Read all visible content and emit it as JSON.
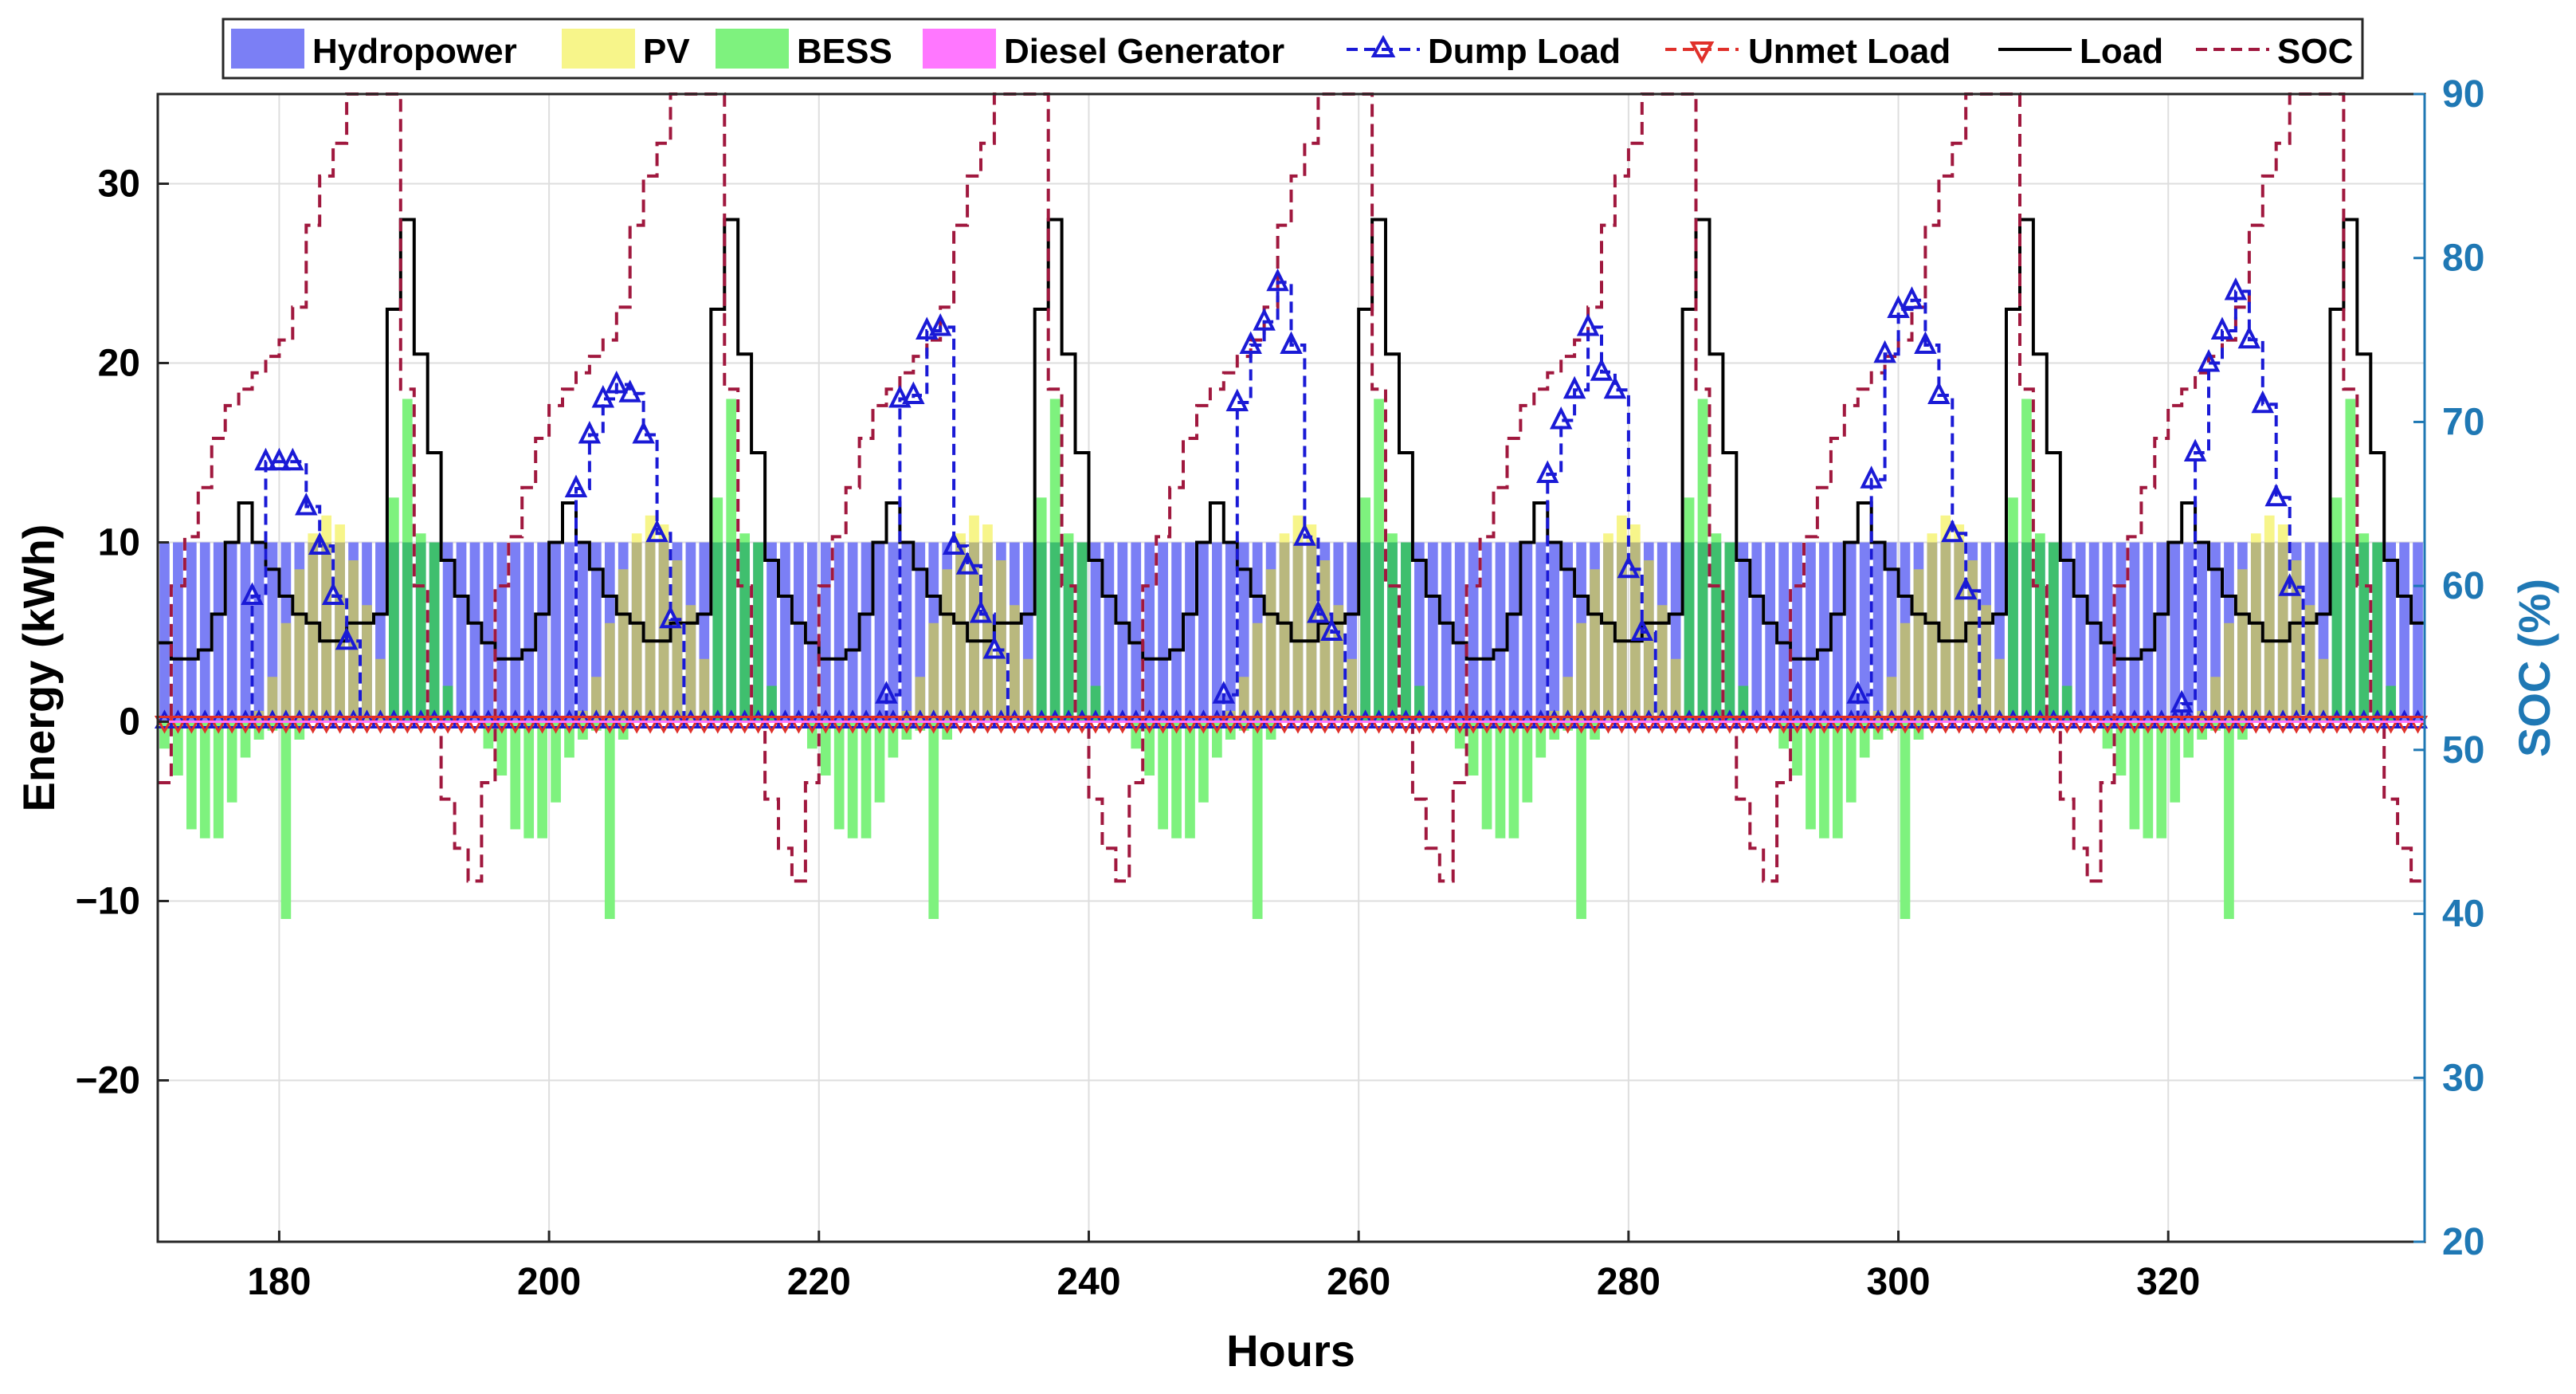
{
  "chart_data": {
    "type": "bar",
    "xlabel": "Hours",
    "ylabel_left": "Energy (kWh)",
    "ylabel_right": "SOC (%)",
    "xlim": [
      171,
      339
    ],
    "ylim_left": [
      -29,
      35
    ],
    "ylim_right": [
      20,
      90
    ],
    "xticks": [
      180,
      200,
      220,
      240,
      260,
      280,
      300,
      320
    ],
    "yticks_left": [
      -20,
      -10,
      0,
      10,
      20,
      30
    ],
    "ytick_labels_left": [
      "−20",
      "−10",
      "0",
      "10",
      "20",
      "30"
    ],
    "yticks_right": [
      20,
      30,
      40,
      50,
      60,
      70,
      80,
      90
    ],
    "grid": true,
    "legend_position": "top",
    "legend": [
      "Hydropower",
      "PV",
      "BESS",
      "Diesel Generator",
      "Dump Load",
      "Unmet Load",
      "Load",
      "SOC"
    ],
    "colors": {
      "hydro": "#7b7ff5",
      "pv": "#f7f58a",
      "bess": "#7ef27e",
      "diesel": "#ff77ff",
      "dump": "#1a1ad6",
      "unmet": "#e0302a",
      "load": "#000000",
      "soc": "#a0183e",
      "right_axis": "#1f78b4"
    },
    "x_start": 171,
    "hydro_value": 10,
    "load_day_profile": [
      4.4,
      3.5,
      3.5,
      4.0,
      6.0,
      10.0,
      12.2,
      10.0,
      8.5,
      7.0,
      6.0,
      5.5,
      4.5,
      4.5,
      5.5,
      5.5,
      6.0,
      23.0,
      28.0,
      20.5,
      15.0,
      9.0,
      7.0,
      5.5
    ],
    "pv_day_profile": [
      0,
      0,
      0,
      0,
      0,
      0,
      0,
      0.6,
      2.5,
      5.5,
      8.5,
      10.5,
      11.5,
      11.0,
      9.0,
      6.5,
      3.5,
      1.0,
      0,
      0,
      0,
      0,
      0,
      0
    ],
    "bess_day_profile": [
      -1.5,
      -3.0,
      -6.0,
      -6.5,
      -6.5,
      -4.5,
      -2.0,
      -1.0,
      -0.5,
      -11.0,
      -1.0,
      0,
      0,
      0,
      0,
      0,
      0,
      12.5,
      18.0,
      10.5,
      10.0,
      2.0,
      0,
      0
    ],
    "soc_day_profile": [
      48,
      60,
      63,
      66,
      69,
      71,
      72,
      73,
      74,
      75,
      77,
      82,
      85,
      87,
      90,
      90,
      90,
      90,
      72,
      60,
      52,
      47,
      44,
      42
    ],
    "dump_points": [
      {
        "x": 178,
        "y": 7.0
      },
      {
        "x": 179,
        "y": 14.5
      },
      {
        "x": 180,
        "y": 14.5
      },
      {
        "x": 181,
        "y": 14.5
      },
      {
        "x": 182,
        "y": 12.0
      },
      {
        "x": 183,
        "y": 9.8
      },
      {
        "x": 184,
        "y": 7.0
      },
      {
        "x": 185,
        "y": 4.5
      },
      {
        "x": 202,
        "y": 13.0
      },
      {
        "x": 203,
        "y": 16.0
      },
      {
        "x": 204,
        "y": 18.0
      },
      {
        "x": 205,
        "y": 18.8
      },
      {
        "x": 206,
        "y": 18.3
      },
      {
        "x": 207,
        "y": 16.0
      },
      {
        "x": 208,
        "y": 10.5
      },
      {
        "x": 209,
        "y": 5.7
      },
      {
        "x": 225,
        "y": 1.5
      },
      {
        "x": 226,
        "y": 18.0
      },
      {
        "x": 227,
        "y": 18.2
      },
      {
        "x": 228,
        "y": 21.8
      },
      {
        "x": 229,
        "y": 22.0
      },
      {
        "x": 230,
        "y": 9.8
      },
      {
        "x": 231,
        "y": 8.7
      },
      {
        "x": 232,
        "y": 6.0
      },
      {
        "x": 233,
        "y": 4.0
      },
      {
        "x": 250,
        "y": 1.5
      },
      {
        "x": 251,
        "y": 17.8
      },
      {
        "x": 252,
        "y": 21.0
      },
      {
        "x": 253,
        "y": 22.3
      },
      {
        "x": 254,
        "y": 24.5
      },
      {
        "x": 255,
        "y": 21.0
      },
      {
        "x": 256,
        "y": 10.3
      },
      {
        "x": 257,
        "y": 6.0
      },
      {
        "x": 258,
        "y": 5.0
      },
      {
        "x": 274,
        "y": 13.8
      },
      {
        "x": 275,
        "y": 16.8
      },
      {
        "x": 276,
        "y": 18.5
      },
      {
        "x": 277,
        "y": 22.0
      },
      {
        "x": 278,
        "y": 19.5
      },
      {
        "x": 279,
        "y": 18.5
      },
      {
        "x": 280,
        "y": 8.5
      },
      {
        "x": 281,
        "y": 5.0
      },
      {
        "x": 297,
        "y": 1.5
      },
      {
        "x": 298,
        "y": 13.5
      },
      {
        "x": 299,
        "y": 20.5
      },
      {
        "x": 300,
        "y": 23.0
      },
      {
        "x": 301,
        "y": 23.5
      },
      {
        "x": 302,
        "y": 21.0
      },
      {
        "x": 303,
        "y": 18.2
      },
      {
        "x": 304,
        "y": 10.5
      },
      {
        "x": 305,
        "y": 7.3
      },
      {
        "x": 321,
        "y": 1.0
      },
      {
        "x": 322,
        "y": 15.0
      },
      {
        "x": 323,
        "y": 20.0
      },
      {
        "x": 324,
        "y": 21.8
      },
      {
        "x": 325,
        "y": 24.0
      },
      {
        "x": 326,
        "y": 21.3
      },
      {
        "x": 327,
        "y": 17.7
      },
      {
        "x": 328,
        "y": 12.5
      },
      {
        "x": 329,
        "y": 7.5
      }
    ],
    "unmet_value": 0
  }
}
